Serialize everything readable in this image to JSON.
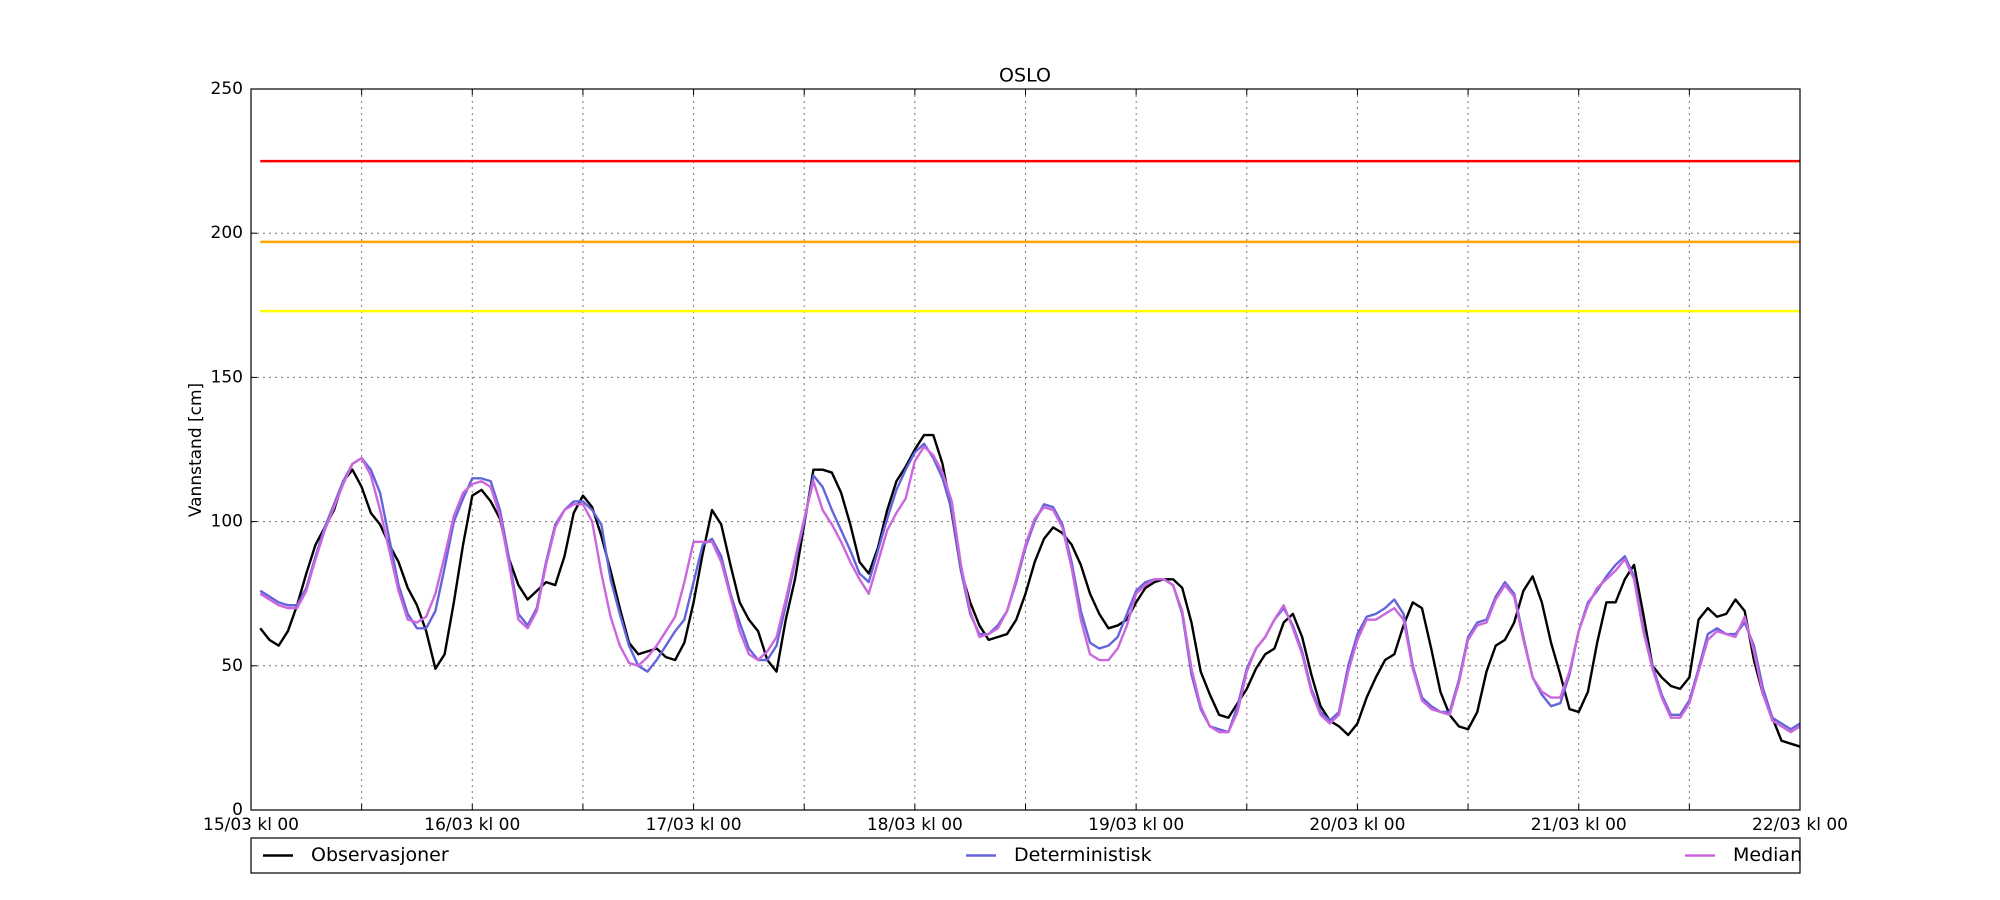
{
  "chart_data": {
    "type": "line",
    "title": "OSLO",
    "y_label": "Vannstand [cm]",
    "categories": [
      "15/03 kl 00",
      null,
      null,
      null,
      null,
      null,
      null,
      null,
      null,
      null,
      null,
      null,
      null,
      null,
      null,
      null,
      null,
      null,
      null,
      null,
      null,
      null,
      null,
      null,
      "16/03 kl 00",
      null,
      null,
      null,
      null,
      null,
      null,
      null,
      null,
      null,
      null,
      null,
      null,
      null,
      null,
      null,
      null,
      null,
      null,
      null,
      null,
      null,
      null,
      null,
      "17/03 kl 00",
      null,
      null,
      null,
      null,
      null,
      null,
      null,
      null,
      null,
      null,
      null,
      null,
      null,
      null,
      null,
      null,
      null,
      null,
      null,
      null,
      null,
      null,
      null,
      "18/03 kl 00",
      null,
      null,
      null,
      null,
      null,
      null,
      null,
      null,
      null,
      null,
      null,
      null,
      null,
      null,
      null,
      null,
      null,
      null,
      null,
      null,
      null,
      null,
      null,
      "19/03 kl 00",
      null,
      null,
      null,
      null,
      null,
      null,
      null,
      null,
      null,
      null,
      null,
      null,
      null,
      null,
      null,
      null,
      null,
      null,
      null,
      null,
      null,
      null,
      null,
      "20/03 kl 00",
      null,
      null,
      null,
      null,
      null,
      null,
      null,
      null,
      null,
      null,
      null,
      null,
      null,
      null,
      null,
      null,
      null,
      null,
      null,
      null,
      null,
      null,
      null,
      "21/03 kl 00",
      null,
      null,
      null,
      null,
      null,
      null,
      null,
      null,
      null,
      null,
      null,
      null,
      null,
      null,
      null,
      null,
      null,
      null,
      null,
      null,
      null,
      null,
      null,
      "22/03 kl 00"
    ],
    "series": [
      {
        "name": "Observasjoner",
        "color": "#000000",
        "values": [
          null,
          63,
          59,
          57,
          62,
          71,
          82,
          92,
          98,
          104,
          114,
          118,
          112,
          103,
          99,
          92,
          86,
          77,
          71,
          62,
          49,
          54,
          72,
          92,
          109,
          111,
          107,
          101,
          87,
          78,
          73,
          76,
          79,
          78,
          88,
          103,
          109,
          105,
          95,
          83,
          70,
          58,
          54,
          55,
          56,
          53,
          52,
          58,
          72,
          89,
          104,
          99,
          85,
          72,
          66,
          62,
          52,
          48,
          66,
          80,
          99,
          118,
          118,
          117,
          110,
          99,
          86,
          82,
          91,
          104,
          114,
          119,
          125,
          130,
          130,
          120,
          103,
          83,
          72,
          64,
          59,
          60,
          61,
          66,
          75,
          86,
          94,
          98,
          96,
          92,
          85,
          75,
          68,
          63,
          64,
          66,
          72,
          77,
          79,
          80,
          80,
          77,
          65,
          48,
          40,
          33,
          32,
          37,
          42,
          49,
          54,
          56,
          65,
          68,
          60,
          47,
          36,
          31,
          29,
          26,
          30,
          39,
          46,
          52,
          54,
          64,
          72,
          70,
          56,
          41,
          33,
          29,
          28,
          34,
          48,
          57,
          59,
          65,
          76,
          81,
          72,
          58,
          47,
          35,
          34,
          41,
          58,
          72,
          72,
          80,
          85,
          68,
          50,
          46,
          43,
          42,
          46,
          66,
          70,
          67,
          68,
          73,
          69,
          52,
          40,
          32,
          24,
          23,
          22
        ]
      },
      {
        "name": "Deterministisk",
        "color": "#6464dc",
        "values": [
          null,
          76,
          74,
          72,
          71,
          71,
          77,
          88,
          98,
          106,
          114,
          120,
          122,
          118,
          110,
          94,
          78,
          68,
          63,
          63,
          69,
          84,
          100,
          108,
          115,
          115,
          114,
          104,
          87,
          68,
          64,
          70,
          86,
          99,
          104,
          107,
          107,
          104,
          99,
          80,
          68,
          57,
          50,
          48,
          52,
          57,
          62,
          66,
          79,
          92,
          94,
          88,
          75,
          65,
          56,
          52,
          52,
          57,
          71,
          86,
          100,
          116,
          112,
          104,
          97,
          90,
          82,
          79,
          90,
          101,
          111,
          118,
          124,
          127,
          122,
          115,
          104,
          83,
          68,
          61,
          61,
          64,
          69,
          79,
          91,
          100,
          106,
          105,
          99,
          86,
          69,
          58,
          56,
          57,
          60,
          68,
          76,
          79,
          80,
          80,
          78,
          68,
          47,
          35,
          29,
          28,
          27,
          36,
          49,
          56,
          60,
          66,
          70,
          64,
          55,
          42,
          34,
          31,
          34,
          50,
          61,
          67,
          68,
          70,
          73,
          68,
          50,
          39,
          36,
          34,
          34,
          45,
          60,
          65,
          66,
          74,
          79,
          75,
          60,
          46,
          40,
          36,
          37,
          47,
          62,
          72,
          76,
          81,
          85,
          88,
          81,
          63,
          50,
          40,
          33,
          33,
          38,
          49,
          61,
          63,
          61,
          61,
          65,
          57,
          42,
          32,
          30,
          28,
          30
        ]
      },
      {
        "name": "Median",
        "color": "#cc66dd",
        "values": [
          null,
          75,
          73,
          71,
          70,
          70,
          76,
          87,
          97,
          105,
          113,
          120,
          122,
          116,
          104,
          90,
          76,
          66,
          65,
          67,
          75,
          88,
          102,
          110,
          113,
          114,
          112,
          102,
          85,
          66,
          63,
          69,
          85,
          98,
          104,
          106,
          106,
          100,
          82,
          67,
          57,
          51,
          50,
          53,
          57,
          62,
          67,
          79,
          93,
          93,
          93,
          86,
          74,
          62,
          54,
          52,
          55,
          60,
          73,
          87,
          101,
          114,
          104,
          99,
          93,
          86,
          80,
          75,
          86,
          97,
          103,
          108,
          121,
          126,
          123,
          117,
          107,
          85,
          69,
          60,
          61,
          63,
          69,
          80,
          92,
          101,
          105,
          104,
          98,
          84,
          66,
          54,
          52,
          52,
          56,
          64,
          75,
          78,
          80,
          80,
          78,
          69,
          49,
          36,
          29,
          27,
          27,
          34,
          48,
          56,
          60,
          66,
          71,
          63,
          54,
          41,
          33,
          30,
          33,
          48,
          59,
          66,
          66,
          68,
          70,
          66,
          49,
          38,
          35,
          34,
          33,
          44,
          59,
          64,
          65,
          73,
          78,
          74,
          59,
          46,
          41,
          39,
          39,
          48,
          62,
          71,
          77,
          80,
          83,
          87,
          80,
          62,
          49,
          39,
          32,
          32,
          37,
          48,
          59,
          62,
          61,
          60,
          67,
          55,
          40,
          31,
          29,
          27,
          29
        ]
      }
    ],
    "reference_lines": [
      {
        "value": 225,
        "color": "#ff0000"
      },
      {
        "value": 197,
        "color": "#ffa500"
      },
      {
        "value": 173,
        "color": "#ffff00"
      }
    ],
    "ylim": [
      0,
      250
    ],
    "yticks": [
      0,
      50,
      100,
      150,
      200,
      250
    ],
    "grid": true,
    "legend": "below"
  }
}
